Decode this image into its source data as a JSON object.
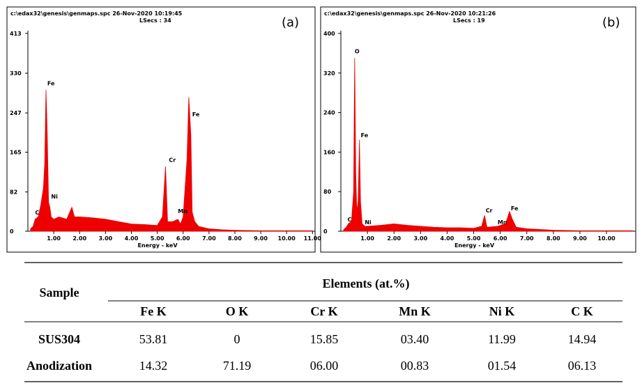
{
  "chart_data": [
    {
      "type": "area",
      "title": "c:\\edax32\\genesis\\genmaps.spc  26-Nov-2020 10:19:45",
      "subtitle": "LSecs : 34",
      "panel": "(a)",
      "x_label": "Energy - keV",
      "color": "#ee0000",
      "x": [
        0.1,
        0.2,
        0.28,
        0.4,
        0.5,
        0.6,
        0.65,
        0.7,
        0.75,
        0.8,
        0.85,
        0.9,
        1.0,
        1.2,
        1.5,
        1.7,
        1.8,
        2.0,
        2.5,
        3.0,
        3.5,
        4.0,
        4.5,
        5.0,
        5.2,
        5.32,
        5.4,
        5.6,
        5.8,
        5.9,
        6.0,
        6.15,
        6.22,
        6.3,
        6.35,
        6.45,
        6.6,
        7.0,
        7.5,
        8.0,
        9.0,
        10.0,
        11.0
      ],
      "values": [
        5,
        10,
        25,
        30,
        55,
        90,
        140,
        295,
        200,
        60,
        50,
        30,
        25,
        30,
        25,
        50,
        30,
        30,
        28,
        25,
        20,
        15,
        14,
        12,
        30,
        135,
        20,
        20,
        25,
        15,
        30,
        150,
        280,
        200,
        40,
        20,
        10,
        5,
        3,
        2,
        1,
        1,
        1
      ],
      "xlim": [
        0,
        11.1
      ],
      "ylim": [
        0,
        413
      ],
      "xticks": [
        {
          "value": 1,
          "label": "1.00"
        },
        {
          "value": 2,
          "label": "2.00"
        },
        {
          "value": 3,
          "label": "3.00"
        },
        {
          "value": 4,
          "label": "4.00"
        },
        {
          "value": 5,
          "label": "5.00"
        },
        {
          "value": 6,
          "label": "6.00"
        },
        {
          "value": 7,
          "label": "7.00"
        },
        {
          "value": 8,
          "label": "8.00"
        },
        {
          "value": 9,
          "label": "9.00"
        },
        {
          "value": 10,
          "label": "10.00"
        },
        {
          "value": 11,
          "label": "11.00"
        }
      ],
      "yticks": [
        0,
        82,
        165,
        247,
        330,
        413
      ],
      "annotations": [
        {
          "text": "C",
          "x": 0.28,
          "y": 35
        },
        {
          "text": "Fe",
          "x": 0.75,
          "y": 305
        },
        {
          "text": "Ni",
          "x": 0.9,
          "y": 68
        },
        {
          "text": "Cr",
          "x": 5.45,
          "y": 145
        },
        {
          "text": "Mn",
          "x": 5.8,
          "y": 38
        },
        {
          "text": "Fe",
          "x": 6.35,
          "y": 240
        }
      ]
    },
    {
      "type": "area",
      "title": "c:\\edax32\\genesis\\genmaps.spc  26-Nov-2020 10:21:26",
      "subtitle": "LSecs : 19",
      "panel": "(b)",
      "x_label": "Energy - keV",
      "color": "#ee0000",
      "x": [
        0.1,
        0.2,
        0.28,
        0.4,
        0.48,
        0.52,
        0.56,
        0.6,
        0.65,
        0.7,
        0.74,
        0.8,
        0.9,
        1.0,
        1.5,
        2.0,
        2.5,
        3.0,
        3.5,
        4.0,
        4.5,
        5.0,
        5.3,
        5.41,
        5.5,
        5.9,
        6.2,
        6.35,
        6.45,
        6.6,
        7.0,
        8.0,
        9.0,
        10.0,
        11.0
      ],
      "values": [
        3,
        8,
        15,
        20,
        80,
        350,
        120,
        40,
        60,
        185,
        60,
        15,
        10,
        10,
        12,
        15,
        12,
        10,
        8,
        7,
        7,
        6,
        10,
        32,
        8,
        10,
        15,
        40,
        25,
        8,
        5,
        2,
        1,
        1,
        1
      ],
      "xlim": [
        0,
        11.1
      ],
      "ylim": [
        0,
        400
      ],
      "xticks": [
        {
          "value": 1,
          "label": "1.00"
        },
        {
          "value": 2,
          "label": "2.00"
        },
        {
          "value": 3,
          "label": "3.00"
        },
        {
          "value": 4,
          "label": "4.00"
        },
        {
          "value": 5,
          "label": "5.00"
        },
        {
          "value": 6,
          "label": "6.00"
        },
        {
          "value": 7,
          "label": "7.00"
        },
        {
          "value": 8,
          "label": "8.00"
        },
        {
          "value": 9,
          "label": "9.00"
        },
        {
          "value": 10,
          "label": "10.00"
        }
      ],
      "yticks": [
        0,
        80,
        160,
        240,
        320,
        400
      ],
      "annotations": [
        {
          "text": "O",
          "x": 0.52,
          "y": 360
        },
        {
          "text": "Fe",
          "x": 0.75,
          "y": 190
        },
        {
          "text": "C",
          "x": 0.25,
          "y": 20
        },
        {
          "text": "Ni",
          "x": 0.9,
          "y": 14
        },
        {
          "text": "Cr",
          "x": 5.45,
          "y": 38
        },
        {
          "text": "Mn",
          "x": 5.9,
          "y": 14
        },
        {
          "text": "Fe",
          "x": 6.4,
          "y": 42
        }
      ]
    }
  ],
  "table": {
    "sample_header": "Sample",
    "group_header": "Elements (at.%)",
    "columns": [
      "Fe K",
      "O K",
      "Cr K",
      "Mn K",
      "Ni K",
      "C K"
    ],
    "rows": [
      [
        "SUS304",
        "53.81",
        "0",
        "15.85",
        "03.40",
        "11.99",
        "14.94"
      ],
      [
        "Anodization",
        "14.32",
        "71.19",
        "06.00",
        "00.83",
        "01.54",
        "06.13"
      ]
    ]
  }
}
